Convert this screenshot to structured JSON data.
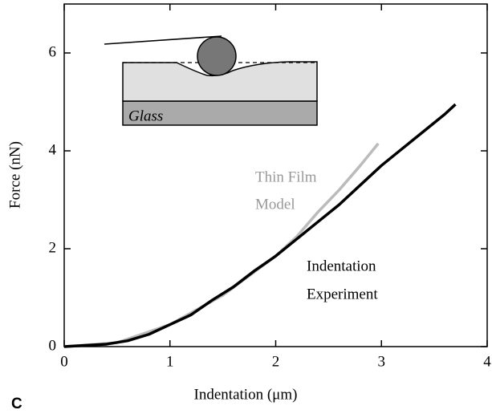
{
  "chart_data": {
    "type": "line",
    "x_label": "Indentation (μm)",
    "y_label": "Force (nN)",
    "xlim": [
      0,
      4
    ],
    "ylim": [
      0,
      7
    ],
    "xticks": [
      0,
      1,
      2,
      3,
      4
    ],
    "yticks": [
      0,
      2,
      4,
      6
    ],
    "series": [
      {
        "name": "Thin Film Model",
        "color": "#bbbbbb",
        "x": [
          0,
          0.5,
          1.0,
          1.5,
          2.0,
          2.2,
          2.4,
          2.6,
          2.8,
          2.97
        ],
        "values": [
          0,
          0.08,
          0.45,
          1.05,
          1.85,
          2.25,
          2.75,
          3.2,
          3.7,
          4.15
        ]
      },
      {
        "name": "Indentation Experiment",
        "color": "#000000",
        "x": [
          0,
          0.4,
          0.6,
          0.8,
          1.0,
          1.2,
          1.4,
          1.6,
          1.8,
          2.0,
          2.2,
          2.4,
          2.6,
          2.8,
          3.0,
          3.2,
          3.4,
          3.6,
          3.7
        ],
        "values": [
          0,
          0.05,
          0.12,
          0.25,
          0.45,
          0.65,
          0.95,
          1.22,
          1.55,
          1.85,
          2.2,
          2.55,
          2.9,
          3.3,
          3.7,
          4.05,
          4.4,
          4.75,
          4.95
        ]
      }
    ],
    "annotations": [
      "Thin Film",
      "Model",
      "Indentation",
      "Experiment",
      "C",
      "Glass"
    ]
  }
}
